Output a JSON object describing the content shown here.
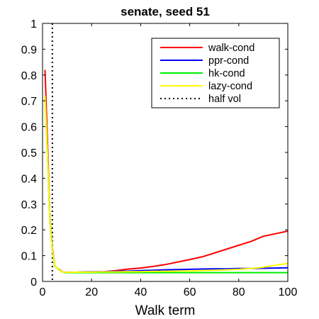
{
  "chart_data": {
    "type": "line",
    "title": "senate, seed 51",
    "xlabel": "Walk term",
    "ylabel": "",
    "xlim": [
      0,
      100
    ],
    "ylim": [
      0,
      1
    ],
    "xticks": [
      0,
      20,
      40,
      60,
      80,
      100
    ],
    "yticks": [
      0,
      0.1,
      0.2,
      0.3,
      0.4,
      0.5,
      0.6,
      0.7,
      0.8,
      0.9,
      1
    ],
    "xtick_labels": [
      "0",
      "20",
      "40",
      "60",
      "80",
      "100"
    ],
    "ytick_labels": [
      "0",
      "0.1",
      "0.2",
      "0.3",
      "0.4",
      "0.5",
      "0.6",
      "0.7",
      "0.8",
      "0.9",
      "1"
    ],
    "grid": false,
    "legend_position": "top-right",
    "series": [
      {
        "name": "walk-cond",
        "color": "#ff0000",
        "x": [
          1,
          2,
          3,
          4,
          5,
          6,
          7,
          8,
          9,
          10,
          15,
          20,
          25,
          30,
          35,
          40,
          45,
          50,
          55,
          60,
          65,
          70,
          75,
          80,
          85,
          90,
          95,
          100
        ],
        "y": [
          0.82,
          0.55,
          0.25,
          0.13,
          0.06,
          0.05,
          0.045,
          0.038,
          0.035,
          0.035,
          0.036,
          0.037,
          0.038,
          0.042,
          0.048,
          0.052,
          0.058,
          0.065,
          0.075,
          0.085,
          0.095,
          0.11,
          0.125,
          0.14,
          0.155,
          0.175,
          0.185,
          0.195
        ]
      },
      {
        "name": "ppr-cond",
        "color": "#0000ff",
        "x": [
          1,
          2,
          3,
          4,
          5,
          6,
          7,
          8,
          9,
          10,
          15,
          20,
          25,
          30,
          35,
          40,
          45,
          50,
          55,
          60,
          65,
          70,
          75,
          80,
          85,
          90,
          95,
          100
        ],
        "y": [
          0.72,
          0.5,
          0.24,
          0.12,
          0.06,
          0.05,
          0.043,
          0.037,
          0.035,
          0.035,
          0.036,
          0.037,
          0.038,
          0.039,
          0.04,
          0.042,
          0.043,
          0.045,
          0.046,
          0.047,
          0.048,
          0.049,
          0.049,
          0.05,
          0.05,
          0.051,
          0.052,
          0.053
        ]
      },
      {
        "name": "hk-cond",
        "color": "#00ee00",
        "x": [
          1,
          2,
          3,
          4,
          5,
          6,
          7,
          8,
          9,
          10,
          15,
          20,
          25,
          30,
          35,
          40,
          45,
          50,
          55,
          60,
          65,
          70,
          75,
          80,
          85,
          90,
          95,
          100
        ],
        "y": [
          0.72,
          0.5,
          0.24,
          0.12,
          0.06,
          0.05,
          0.043,
          0.037,
          0.034,
          0.034,
          0.034,
          0.034,
          0.034,
          0.034,
          0.034,
          0.034,
          0.034,
          0.034,
          0.034,
          0.034,
          0.034,
          0.034,
          0.034,
          0.034,
          0.034,
          0.034,
          0.034,
          0.034
        ]
      },
      {
        "name": "lazy-cond",
        "color": "#ffff00",
        "x": [
          1,
          2,
          3,
          4,
          5,
          6,
          7,
          8,
          9,
          10,
          15,
          20,
          25,
          30,
          35,
          40,
          45,
          50,
          55,
          60,
          65,
          70,
          75,
          80,
          85,
          90,
          95,
          100
        ],
        "y": [
          0.72,
          0.5,
          0.24,
          0.12,
          0.06,
          0.05,
          0.043,
          0.037,
          0.035,
          0.035,
          0.036,
          0.036,
          0.037,
          0.037,
          0.038,
          0.038,
          0.039,
          0.039,
          0.04,
          0.041,
          0.042,
          0.043,
          0.045,
          0.047,
          0.05,
          0.055,
          0.063,
          0.07
        ]
      }
    ],
    "reference_lines": [
      {
        "name": "half vol",
        "orientation": "vertical",
        "x": 4,
        "style": "dotted",
        "color": "#000000"
      }
    ]
  }
}
